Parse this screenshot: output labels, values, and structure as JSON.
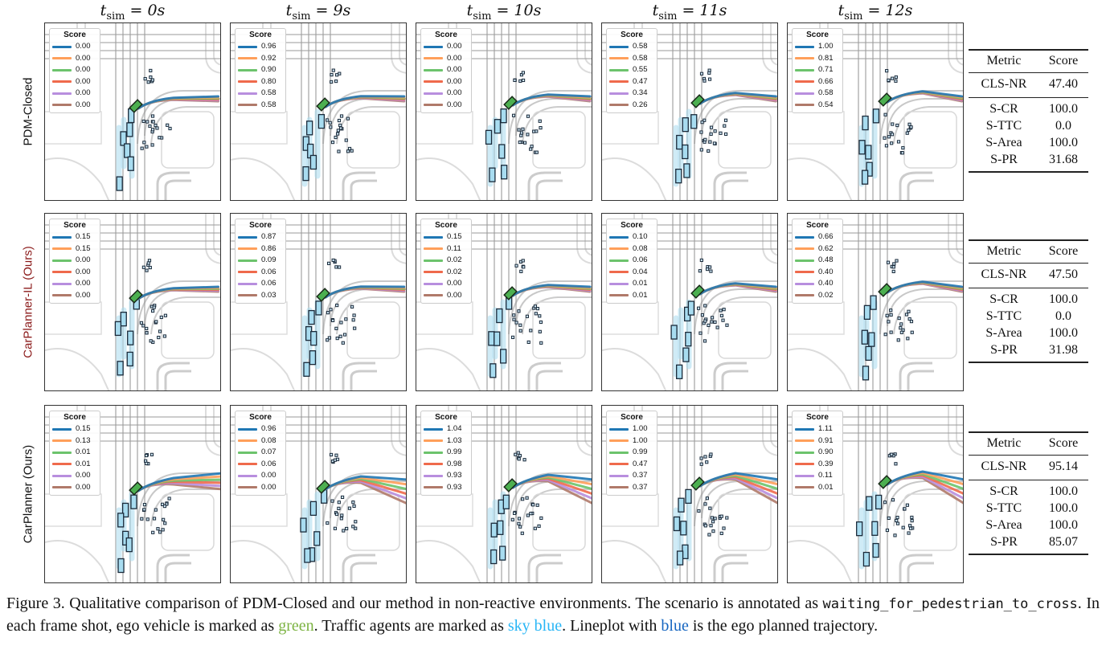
{
  "columns": [
    {
      "t": "t",
      "sub": "sim",
      "rest": " = 0s"
    },
    {
      "t": "t",
      "sub": "sim",
      "rest": " = 9s"
    },
    {
      "t": "t",
      "sub": "sim",
      "rest": " = 10s"
    },
    {
      "t": "t",
      "sub": "sim",
      "rest": " = 11s"
    },
    {
      "t": "t",
      "sub": "sim",
      "rest": " = 12s"
    }
  ],
  "legend_title": "Score",
  "colors": {
    "blue": "#1f77b4",
    "orange": "#ff9f5a",
    "green": "#6cc36c",
    "red": "#ef6a4c",
    "purple": "#b88ede",
    "brown": "#b07a6a",
    "ego": "#4caf50",
    "agent": "#a8dcf0",
    "road": "#9a9a9a"
  },
  "rows": [
    {
      "label": "PDM-Closed",
      "label_color": "#111111",
      "panels": [
        {
          "scores": [
            "0.00",
            "0.00",
            "0.00",
            "0.00",
            "0.00",
            "0.00"
          ]
        },
        {
          "scores": [
            "0.96",
            "0.92",
            "0.90",
            "0.80",
            "0.58",
            "0.58"
          ]
        },
        {
          "scores": [
            "0.00",
            "0.00",
            "0.00",
            "0.00",
            "0.00",
            "0.00"
          ]
        },
        {
          "scores": [
            "0.58",
            "0.58",
            "0.55",
            "0.47",
            "0.34",
            "0.26"
          ]
        },
        {
          "scores": [
            "1.00",
            "0.81",
            "0.71",
            "0.66",
            "0.58",
            "0.54"
          ]
        }
      ],
      "metrics": {
        "header": [
          "Metric",
          "Score"
        ],
        "cls": [
          "CLS-NR",
          "47.40"
        ],
        "subs": [
          [
            "S-CR",
            "100.0"
          ],
          [
            "S-TTC",
            "0.0"
          ],
          [
            "S-Area",
            "100.0"
          ],
          [
            "S-PR",
            "31.68"
          ]
        ]
      }
    },
    {
      "label": "CarPlanner-IL (Ours)",
      "label_color": "#8b1a1a",
      "panels": [
        {
          "scores": [
            "0.15",
            "0.15",
            "0.00",
            "0.00",
            "0.00",
            "0.00"
          ]
        },
        {
          "scores": [
            "0.87",
            "0.86",
            "0.09",
            "0.06",
            "0.06",
            "0.03"
          ]
        },
        {
          "scores": [
            "0.15",
            "0.11",
            "0.02",
            "0.02",
            "0.00",
            "0.00"
          ]
        },
        {
          "scores": [
            "0.10",
            "0.08",
            "0.06",
            "0.04",
            "0.01",
            "0.01"
          ]
        },
        {
          "scores": [
            "0.66",
            "0.62",
            "0.48",
            "0.40",
            "0.40",
            "0.02"
          ]
        }
      ],
      "metrics": {
        "header": [
          "Metric",
          "Score"
        ],
        "cls": [
          "CLS-NR",
          "47.50"
        ],
        "subs": [
          [
            "S-CR",
            "100.0"
          ],
          [
            "S-TTC",
            "0.0"
          ],
          [
            "S-Area",
            "100.0"
          ],
          [
            "S-PR",
            "31.98"
          ]
        ]
      }
    },
    {
      "label": "CarPlanner (Ours)",
      "label_color": "#111111",
      "panels": [
        {
          "scores": [
            "0.15",
            "0.13",
            "0.01",
            "0.01",
            "0.00",
            "0.00"
          ]
        },
        {
          "scores": [
            "0.96",
            "0.08",
            "0.07",
            "0.06",
            "0.00",
            "0.00"
          ]
        },
        {
          "scores": [
            "1.04",
            "1.03",
            "0.99",
            "0.98",
            "0.93",
            "0.93"
          ]
        },
        {
          "scores": [
            "1.00",
            "1.00",
            "0.99",
            "0.47",
            "0.37",
            "0.37"
          ]
        },
        {
          "scores": [
            "1.11",
            "0.91",
            "0.90",
            "0.39",
            "0.11",
            "0.01"
          ]
        }
      ],
      "metrics": {
        "header": [
          "Metric",
          "Score"
        ],
        "cls": [
          "CLS-NR",
          "95.14"
        ],
        "subs": [
          [
            "S-CR",
            "100.0"
          ],
          [
            "S-TTC",
            "100.0"
          ],
          [
            "S-Area",
            "100.0"
          ],
          [
            "S-PR",
            "85.07"
          ]
        ]
      }
    }
  ],
  "caption": {
    "p1": "Figure 3.  Qualitative comparison of PDM-Closed and our method in non-reactive environments.  The scenario is annotated as ",
    "scenario": "waiting_for_pedestrian_to_cross",
    "p2": ". In each frame shot, ego vehicle is marked as ",
    "green_word": "green",
    "p3": ".  Traffic agents are marked as ",
    "sky_word": "sky blue",
    "p4": ". Lineplot with ",
    "blue_word": "blue",
    "p5": " is the ego planned trajectory."
  }
}
